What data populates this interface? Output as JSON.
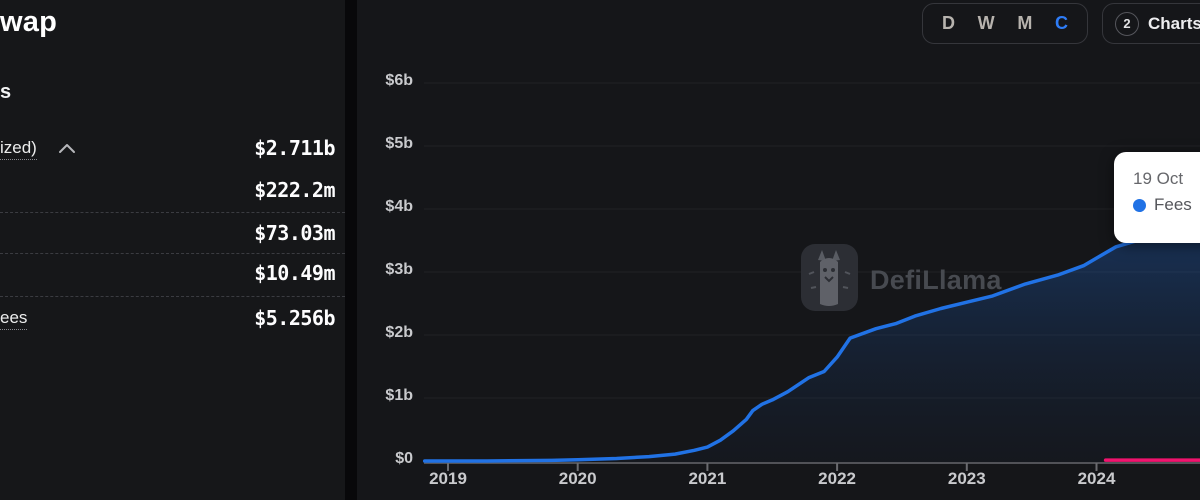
{
  "sidebar": {
    "title": "wap",
    "section_heading": "s",
    "rows": [
      {
        "label": "ized)",
        "value": "$2.711b",
        "expanded": true
      },
      {
        "label": "",
        "value": "$222.2m"
      },
      {
        "label": "",
        "value": "$73.03m"
      },
      {
        "label": "",
        "value": "$10.49m"
      },
      {
        "label": "ees",
        "value": "$5.256b"
      }
    ]
  },
  "toolbar": {
    "interval_buttons": [
      "D",
      "W",
      "M",
      "C"
    ],
    "active_interval": "C",
    "charts_button": {
      "count": "2",
      "label": "Charts"
    }
  },
  "watermark": "DefiLlama",
  "tooltip": {
    "date": "19 Oct",
    "series": "Fees"
  },
  "colors": {
    "accent_blue": "#2172e5",
    "accent_pink": "#f1136e",
    "panel_bg": "#151619",
    "sidebar_bg": "#161719",
    "axis_text": "#c9cacd",
    "axis_line": "#515257"
  },
  "chart_data": {
    "type": "area",
    "title": "",
    "legend_position": "tooltip",
    "grid": true,
    "x_axis": {
      "ticks": [
        2019,
        2020,
        2021,
        2022,
        2023,
        2024
      ]
    },
    "y_axis": {
      "tick_labels": [
        "$0",
        "$1b",
        "$2b",
        "$3b",
        "$4b",
        "$5b",
        "$6b"
      ],
      "tick_values_billions": [
        0,
        1,
        2,
        3,
        4,
        5,
        6
      ],
      "range_billions": [
        0,
        6.5
      ]
    },
    "series": [
      {
        "name": "Fees",
        "color": "#2172e5",
        "fill": true,
        "x_years": [
          2018.82,
          2019.3,
          2019.8,
          2020.0,
          2020.3,
          2020.55,
          2020.75,
          2020.9,
          2021.0,
          2021.1,
          2021.2,
          2021.3,
          2021.35,
          2021.42,
          2021.5,
          2021.62,
          2021.78,
          2021.9,
          2022.0,
          2022.1,
          2022.3,
          2022.45,
          2022.6,
          2022.8,
          2023.0,
          2023.2,
          2023.45,
          2023.7,
          2023.9,
          2024.0,
          2024.15,
          2024.35,
          2024.6,
          2024.83
        ],
        "y_billions": [
          0,
          0,
          0.01,
          0.02,
          0.04,
          0.07,
          0.11,
          0.17,
          0.22,
          0.33,
          0.48,
          0.66,
          0.8,
          0.9,
          0.97,
          1.1,
          1.32,
          1.42,
          1.65,
          1.95,
          2.1,
          2.18,
          2.3,
          2.42,
          2.52,
          2.62,
          2.81,
          2.95,
          3.1,
          3.22,
          3.4,
          3.52,
          3.66,
          3.8
        ]
      },
      {
        "name": "",
        "color": "#f1136e",
        "fill": false,
        "x_years": [
          2024.07,
          2024.83
        ],
        "y_billions": [
          0.015,
          0.015
        ]
      }
    ]
  }
}
